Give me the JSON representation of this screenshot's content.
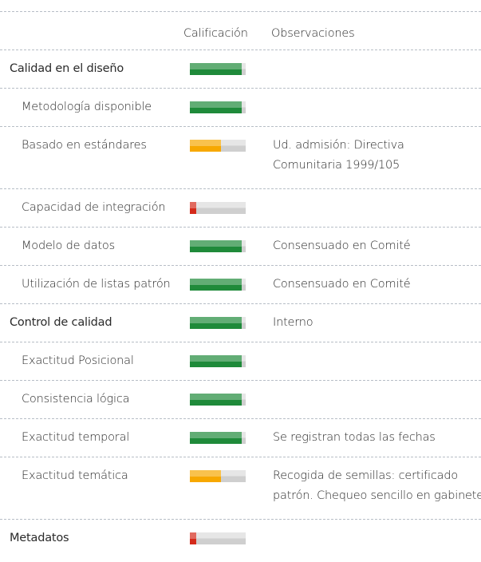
{
  "header": {
    "rating": "Calificación",
    "observations": "Observaciones"
  },
  "rows": [
    {
      "label": "Calidad en el diseño",
      "level": 0,
      "rating": 93,
      "color": "#1f8a3a",
      "observations": []
    },
    {
      "label": "Metodología disponible",
      "level": 1,
      "rating": 93,
      "color": "#1f8a3a",
      "observations": []
    },
    {
      "label": "Basado en estándares",
      "level": 1,
      "rating": 55,
      "color": "#f7a800",
      "observations": [
        "Ud. admisión: Directiva",
        "Comunitaria 1999/105"
      ]
    },
    {
      "label": "Capacidad de integración",
      "level": 1,
      "rating": 12,
      "color": "#d42a1a",
      "observations": []
    },
    {
      "label": "Modelo de datos",
      "level": 1,
      "rating": 93,
      "color": "#1f8a3a",
      "observations": [
        "Consensuado en Comité"
      ]
    },
    {
      "label": "Utilización de listas patrón",
      "level": 1,
      "rating": 93,
      "color": "#1f8a3a",
      "observations": [
        "Consensuado en Comité"
      ]
    },
    {
      "label": "Control de calidad",
      "level": 0,
      "rating": 93,
      "color": "#1f8a3a",
      "observations": [
        "Interno"
      ]
    },
    {
      "label": "Exactitud Posicional",
      "level": 1,
      "rating": 93,
      "color": "#1f8a3a",
      "observations": []
    },
    {
      "label": "Consistencia lógica",
      "level": 1,
      "rating": 93,
      "color": "#1f8a3a",
      "observations": []
    },
    {
      "label": "Exactitud temporal",
      "level": 1,
      "rating": 93,
      "color": "#1f8a3a",
      "observations": [
        "Se registran todas las fechas"
      ]
    },
    {
      "label": "Exactitud temática",
      "level": 1,
      "rating": 55,
      "color": "#f7a800",
      "observations": [
        "Recogida de semillas: certificado",
        "patrón. Chequeo sencillo en gabinete"
      ]
    },
    {
      "label": "Metadatos",
      "level": 0,
      "rating": 12,
      "color": "#d42a1a",
      "observations": []
    }
  ]
}
